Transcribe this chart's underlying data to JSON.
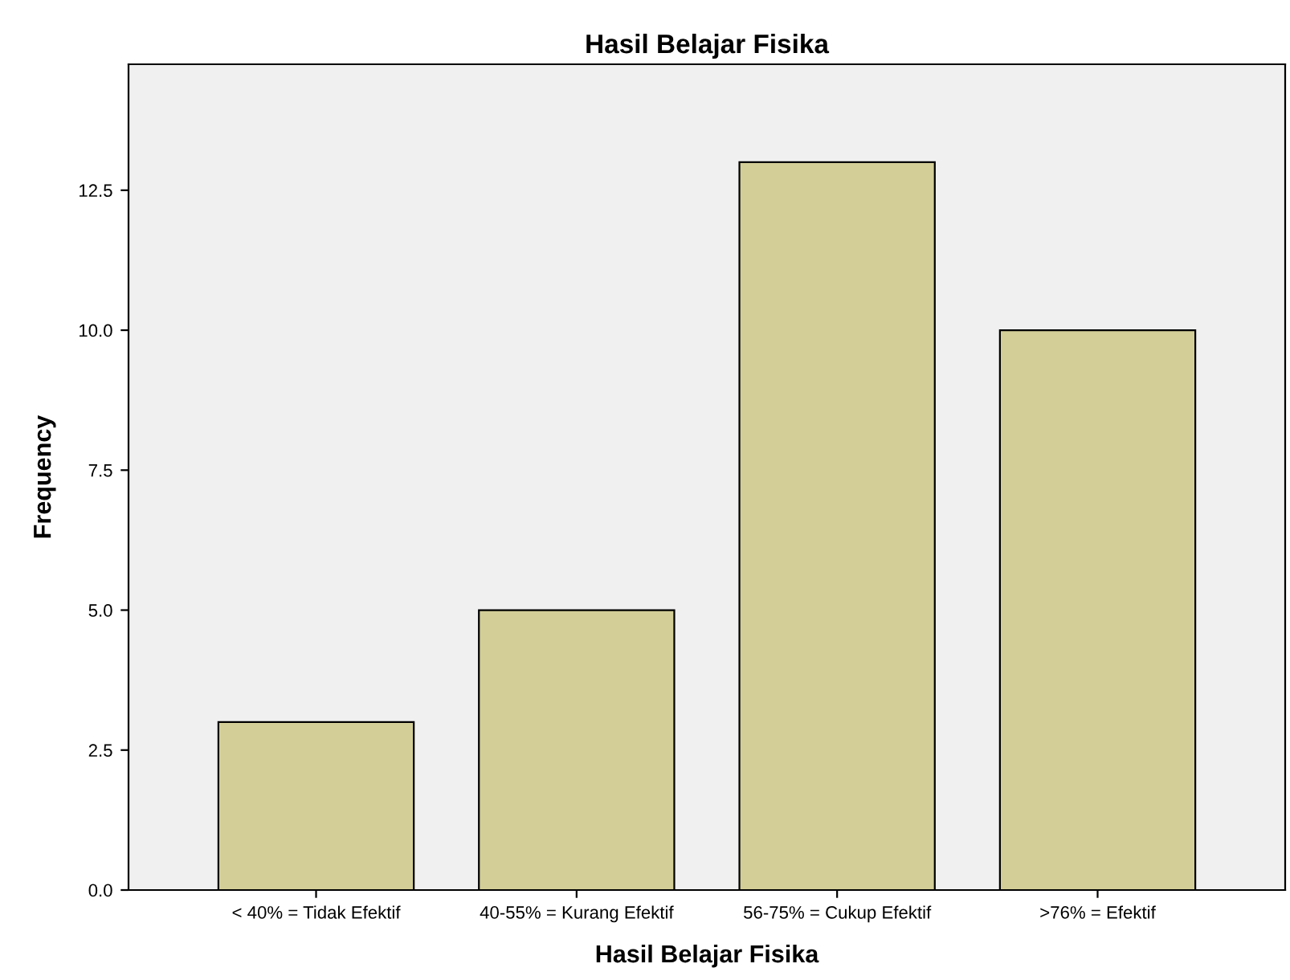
{
  "chart_data": {
    "type": "bar",
    "title": "Hasil Belajar Fisika",
    "xlabel": "Hasil Belajar Fisika",
    "ylabel": "Frequency",
    "categories": [
      "< 40% = Tidak Efektif",
      "40-55% = Kurang Efektif",
      "56-75% = Cukup Efektif",
      ">76% = Efektif"
    ],
    "values": [
      3,
      5,
      13,
      10
    ],
    "color": "#d3ce97",
    "ylim": [
      0,
      14.75
    ],
    "yticks": [
      {
        "value": 0,
        "label": "0.0"
      },
      {
        "value": 2.5,
        "label": "2.5"
      },
      {
        "value": 5,
        "label": "5.0"
      },
      {
        "value": 7.5,
        "label": "7.5"
      },
      {
        "value": 10,
        "label": "10.0"
      },
      {
        "value": 12.5,
        "label": "12.5"
      }
    ],
    "grid": false,
    "legend": false
  }
}
